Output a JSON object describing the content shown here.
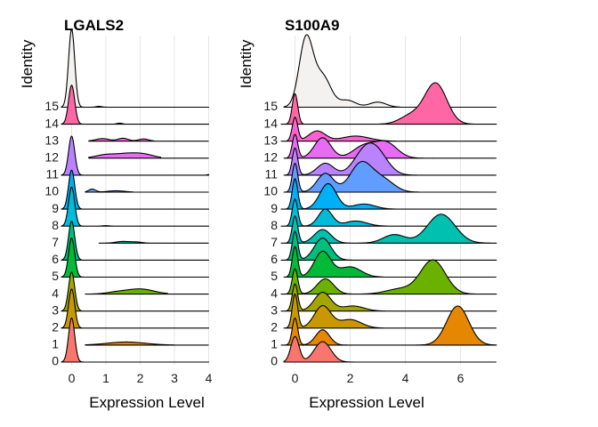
{
  "colors": {
    "ridge_fill": [
      "#F8766D",
      "#E58700",
      "#C99800",
      "#A3A500",
      "#6BB100",
      "#00BA38",
      "#00BF7D",
      "#00C0AF",
      "#00BCD8",
      "#00B0F6",
      "#619CFF",
      "#B983FF",
      "#E76BF3",
      "#FD61D1",
      "#FF67A4",
      "#F4F2F0"
    ],
    "grid": "#e6e6e6",
    "outline": "#000000"
  },
  "chart_data": [
    {
      "type": "ridgeline",
      "title": "LGALS2",
      "xlabel": "Expression Level",
      "ylabel": "Identity",
      "categories": [
        "0",
        "1",
        "2",
        "3",
        "4",
        "5",
        "6",
        "7",
        "8",
        "9",
        "10",
        "11",
        "12",
        "13",
        "14",
        "15"
      ],
      "xlim": [
        -0.3,
        4.0
      ],
      "xticks": [
        0,
        1,
        2,
        3,
        4
      ],
      "grid": "vertical",
      "baseline_end": 4.0,
      "series": [
        {
          "identity": "0",
          "peaks": [
            [
              0,
              0.09,
              2.6
            ]
          ]
        },
        {
          "identity": "1",
          "peaks": [
            [
              0,
              0.09,
              2.3
            ],
            [
              1.6,
              0.55,
              0.18
            ]
          ],
          "range": [
            0.4,
            3.0
          ]
        },
        {
          "identity": "2",
          "peaks": [
            [
              0,
              0.09,
              2.3
            ]
          ]
        },
        {
          "identity": "3",
          "peaks": [
            [
              0,
              0.09,
              2.3
            ]
          ]
        },
        {
          "identity": "4",
          "peaks": [
            [
              0,
              0.09,
              2.3
            ],
            [
              2.0,
              0.4,
              0.3
            ],
            [
              1.3,
              0.3,
              0.1
            ]
          ],
          "range": [
            0.4,
            2.8
          ]
        },
        {
          "identity": "5",
          "peaks": [
            [
              0,
              0.09,
              2.3
            ]
          ]
        },
        {
          "identity": "6",
          "peaks": [
            [
              0,
              0.09,
              2.3
            ]
          ]
        },
        {
          "identity": "7",
          "peaks": [
            [
              0,
              0.09,
              2.3
            ],
            [
              1.5,
              0.2,
              0.1
            ],
            [
              1.9,
              0.15,
              0.06
            ]
          ],
          "range": [
            0.8,
            2.4
          ]
        },
        {
          "identity": "8",
          "peaks": [
            [
              0,
              0.09,
              2.3
            ],
            [
              1.0,
              0.1,
              0.03
            ]
          ]
        },
        {
          "identity": "9",
          "peaks": [
            [
              0,
              0.09,
              2.3
            ]
          ]
        },
        {
          "identity": "10",
          "peaks": [
            [
              0,
              0.09,
              2.3
            ],
            [
              0.6,
              0.1,
              0.18
            ],
            [
              1.3,
              0.25,
              0.08
            ]
          ],
          "range": [
            0.4,
            1.8
          ]
        },
        {
          "identity": "11",
          "peaks": [
            [
              0,
              0.09,
              2.3
            ],
            [
              4.0,
              0.04,
              0.04
            ]
          ]
        },
        {
          "identity": "12",
          "peaks": [
            [
              0,
              0.09,
              2.3
            ],
            [
              1.0,
              0.3,
              0.2
            ],
            [
              1.6,
              0.3,
              0.22
            ],
            [
              2.1,
              0.3,
              0.22
            ]
          ],
          "range": [
            0.5,
            2.6
          ]
        },
        {
          "identity": "13",
          "peaks": [
            [
              0,
              0.09,
              2.3
            ],
            [
              0.9,
              0.2,
              0.15
            ],
            [
              1.5,
              0.15,
              0.17
            ],
            [
              2.1,
              0.15,
              0.13
            ]
          ],
          "range": [
            0.5,
            2.4
          ]
        },
        {
          "identity": "14",
          "peaks": [
            [
              0,
              0.09,
              2.3
            ],
            [
              1.4,
              0.08,
              0.06
            ]
          ]
        },
        {
          "identity": "15",
          "peaks": [
            [
              0,
              0.09,
              4.6
            ],
            [
              0.8,
              0.08,
              0.05
            ]
          ]
        }
      ]
    },
    {
      "type": "ridgeline",
      "title": "S100A9",
      "xlabel": "Expression Level",
      "ylabel": "Identity",
      "categories": [
        "0",
        "1",
        "2",
        "3",
        "4",
        "5",
        "6",
        "7",
        "8",
        "9",
        "10",
        "11",
        "12",
        "13",
        "14",
        "15"
      ],
      "xlim": [
        -0.5,
        7.3
      ],
      "xticks": [
        0,
        2,
        4,
        6
      ],
      "grid": "vertical",
      "baseline_end": 7.3,
      "series": [
        {
          "identity": "0",
          "peaks": [
            [
              0,
              0.15,
              1.5
            ],
            [
              1.0,
              0.3,
              1.2
            ]
          ],
          "range": [
            -0.4,
            3.0
          ]
        },
        {
          "identity": "1",
          "peaks": [
            [
              0,
              0.1,
              1.6
            ],
            [
              1.0,
              0.25,
              0.9
            ],
            [
              5.9,
              0.4,
              2.3
            ]
          ]
        },
        {
          "identity": "2",
          "peaks": [
            [
              0,
              0.1,
              2.0
            ],
            [
              1.0,
              0.3,
              1.3
            ],
            [
              2.0,
              0.4,
              0.5
            ]
          ],
          "range": [
            -0.4,
            3.2
          ]
        },
        {
          "identity": "3",
          "peaks": [
            [
              0,
              0.1,
              1.6
            ],
            [
              1.0,
              0.3,
              1.1
            ],
            [
              2.1,
              0.4,
              0.3
            ]
          ]
        },
        {
          "identity": "4",
          "peaks": [
            [
              0,
              0.1,
              1.5
            ],
            [
              1.1,
              0.3,
              0.9
            ],
            [
              5.0,
              0.45,
              2.0
            ],
            [
              3.8,
              0.5,
              0.3
            ]
          ]
        },
        {
          "identity": "5",
          "peaks": [
            [
              0,
              0.1,
              1.8
            ],
            [
              1.0,
              0.3,
              1.5
            ],
            [
              2.0,
              0.4,
              0.6
            ]
          ],
          "range": [
            -0.4,
            3.2
          ]
        },
        {
          "identity": "6",
          "peaks": [
            [
              0,
              0.1,
              1.7
            ],
            [
              1.0,
              0.3,
              1.3
            ]
          ]
        },
        {
          "identity": "7",
          "peaks": [
            [
              0,
              0.1,
              1.6
            ],
            [
              1.0,
              0.3,
              0.8
            ],
            [
              5.3,
              0.5,
              1.7
            ],
            [
              3.6,
              0.4,
              0.5
            ]
          ]
        },
        {
          "identity": "8",
          "peaks": [
            [
              0,
              0.1,
              1.6
            ],
            [
              1.1,
              0.25,
              1.0
            ],
            [
              2.2,
              0.4,
              0.3
            ]
          ]
        },
        {
          "identity": "9",
          "peaks": [
            [
              0,
              0.1,
              1.8
            ],
            [
              1.2,
              0.3,
              1.5
            ],
            [
              2.5,
              0.4,
              0.3
            ]
          ]
        },
        {
          "identity": "10",
          "peaks": [
            [
              0,
              0.1,
              1.7
            ],
            [
              1.1,
              0.3,
              1.1
            ],
            [
              2.4,
              0.4,
              1.7
            ],
            [
              3.2,
              0.4,
              0.7
            ]
          ],
          "range": [
            -0.4,
            4.5
          ]
        },
        {
          "identity": "11",
          "peaks": [
            [
              0,
              0.1,
              1.6
            ],
            [
              1.1,
              0.3,
              0.7
            ],
            [
              2.5,
              0.4,
              1.2
            ],
            [
              3.0,
              0.4,
              1.1
            ]
          ],
          "range": [
            -0.4,
            5.0
          ]
        },
        {
          "identity": "12",
          "peaks": [
            [
              0,
              0.1,
              1.4
            ],
            [
              1.0,
              0.3,
              1.2
            ],
            [
              2.5,
              0.4,
              0.7
            ],
            [
              3.3,
              0.4,
              0.9
            ]
          ],
          "range": [
            -0.4,
            5.0
          ]
        },
        {
          "identity": "13",
          "peaks": [
            [
              0,
              0.1,
              1.4
            ],
            [
              0.8,
              0.3,
              0.6
            ],
            [
              2.2,
              0.5,
              0.3
            ]
          ]
        },
        {
          "identity": "14",
          "peaks": [
            [
              0,
              0.1,
              1.8
            ],
            [
              5.1,
              0.4,
              2.4
            ],
            [
              4.2,
              0.4,
              0.5
            ]
          ]
        },
        {
          "identity": "15",
          "peaks": [
            [
              0.4,
              0.25,
              4.0
            ],
            [
              1.0,
              0.3,
              1.8
            ],
            [
              1.9,
              0.3,
              0.4
            ],
            [
              3.0,
              0.3,
              0.3
            ]
          ],
          "range": [
            -0.4,
            3.8
          ]
        }
      ]
    }
  ]
}
